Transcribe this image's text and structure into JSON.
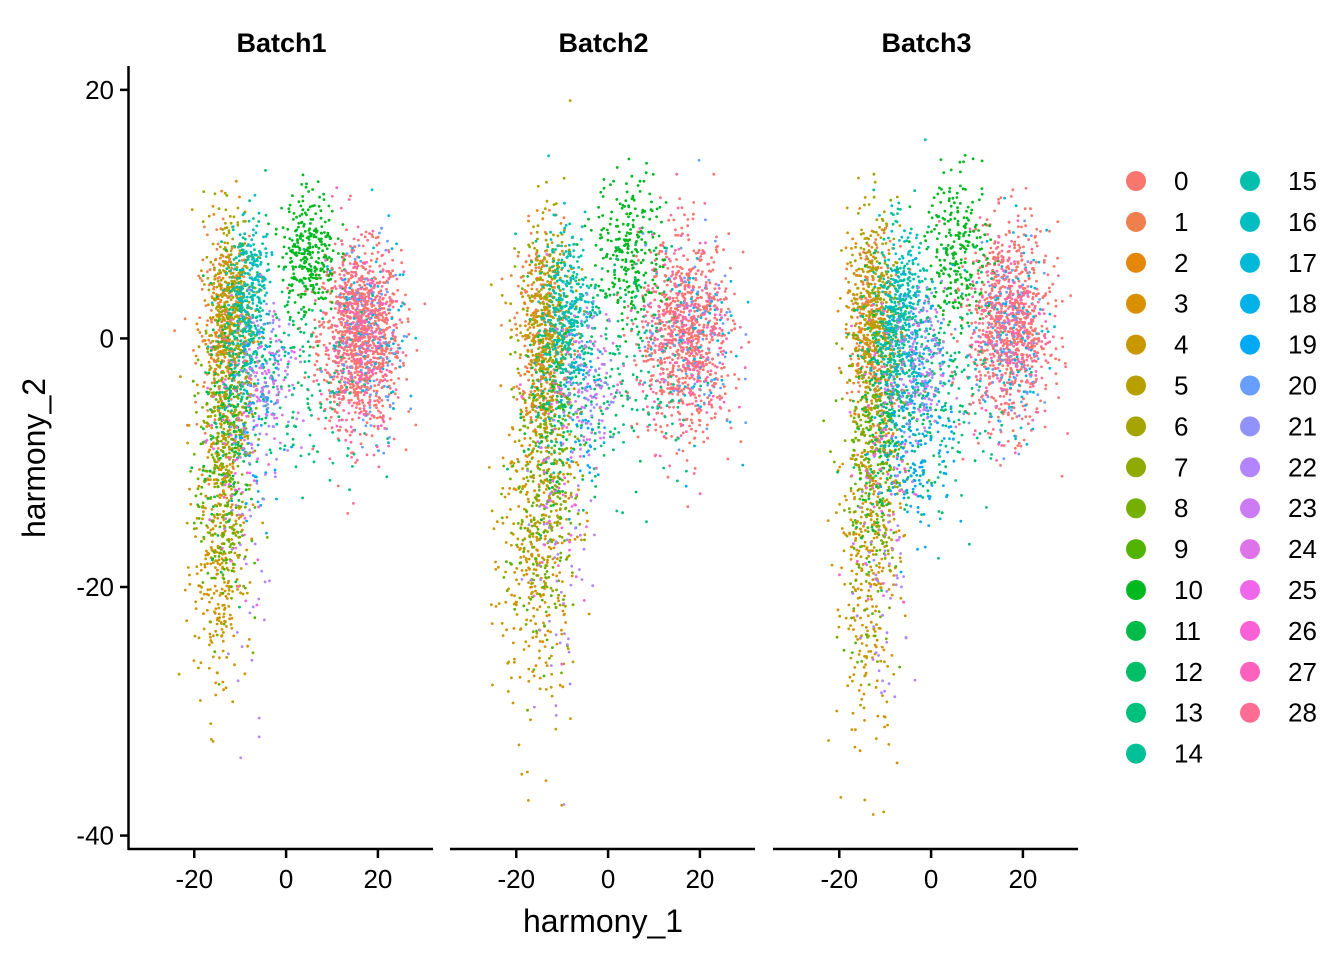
{
  "chart_data": {
    "type": "scatter",
    "xlabel": "harmony_1",
    "ylabel": "harmony_2",
    "facets": [
      "Batch1",
      "Batch2",
      "Batch3"
    ],
    "xlim": [
      -34,
      32
    ],
    "ylim": [
      -41,
      22
    ],
    "x_ticks": [
      -20,
      0,
      20
    ],
    "y_ticks": [
      20,
      0,
      -20,
      -40
    ],
    "x_tick_labels": [
      "-20",
      "0",
      "20"
    ],
    "y_tick_labels": [
      "20",
      "0",
      "-20",
      "-40"
    ],
    "legend_position": "right",
    "legend_entries": [
      "0",
      "1",
      "2",
      "3",
      "4",
      "5",
      "6",
      "7",
      "8",
      "9",
      "10",
      "11",
      "12",
      "13",
      "14",
      "15",
      "16",
      "17",
      "18",
      "19",
      "20",
      "21",
      "22",
      "23",
      "24",
      "25",
      "26",
      "27",
      "28"
    ],
    "colors": [
      "#F8766D",
      "#F07F4E",
      "#E5870A",
      "#D89000",
      "#C99800",
      "#B89F00",
      "#A5A400",
      "#8FAA00",
      "#75AF00",
      "#53B400",
      "#00B81F",
      "#00BB48",
      "#00BE65",
      "#00C07E",
      "#00C097",
      "#00BFAD",
      "#00BDC2",
      "#00B9D6",
      "#00B2E7",
      "#00A9F4",
      "#689EFF",
      "#9292FF",
      "#B285FF",
      "#CC7BF5",
      "#DE72E8",
      "#F066EA",
      "#FB61D7",
      "#FF62BC",
      "#FF6C94"
    ],
    "point_clouds": [
      [
        {
          "cluster": 0,
          "x": 16,
          "y": 0,
          "sx": 4.5,
          "sy": 3.5,
          "n": 900
        },
        {
          "cluster": 1,
          "x": -13,
          "y": 0,
          "sx": 3,
          "sy": 4,
          "n": 250
        },
        {
          "cluster": 2,
          "x": -13,
          "y": 1,
          "sx": 2.5,
          "sy": 4,
          "n": 150
        },
        {
          "cluster": 3,
          "x": -14,
          "y": -12,
          "sx": 3,
          "sy": 7,
          "n": 200
        },
        {
          "cluster": 4,
          "x": -15,
          "y": -18,
          "sx": 2.5,
          "sy": 6,
          "n": 200
        },
        {
          "cluster": 5,
          "x": -12,
          "y": 3,
          "sx": 2.5,
          "sy": 3.5,
          "n": 180
        },
        {
          "cluster": 6,
          "x": -12,
          "y": 4,
          "sx": 2.5,
          "sy": 3.5,
          "n": 120
        },
        {
          "cluster": 7,
          "x": -13,
          "y": -6,
          "sx": 2.5,
          "sy": 5,
          "n": 150
        },
        {
          "cluster": 8,
          "x": -14,
          "y": -10,
          "sx": 3,
          "sy": 6,
          "n": 150
        },
        {
          "cluster": 9,
          "x": -14,
          "y": -14,
          "sx": 3,
          "sy": 5,
          "n": 80
        },
        {
          "cluster": 10,
          "x": 5,
          "y": 7,
          "sx": 3,
          "sy": 2.5,
          "n": 300
        },
        {
          "cluster": 11,
          "x": -12,
          "y": -6,
          "sx": 3,
          "sy": 5,
          "n": 150
        },
        {
          "cluster": 12,
          "x": -2,
          "y": -3,
          "sx": 6,
          "sy": 5,
          "n": 100
        },
        {
          "cluster": 13,
          "x": 8,
          "y": -3,
          "sx": 8,
          "sy": 4,
          "n": 100
        },
        {
          "cluster": 14,
          "x": -10,
          "y": 0,
          "sx": 2.5,
          "sy": 4,
          "n": 150
        },
        {
          "cluster": 15,
          "x": -8,
          "y": 3,
          "sx": 2,
          "sy": 3,
          "n": 150
        },
        {
          "cluster": 16,
          "x": -7,
          "y": 5,
          "sx": 2,
          "sy": 2.5,
          "n": 80
        },
        {
          "cluster": 17,
          "x": 18,
          "y": 1,
          "sx": 4,
          "sy": 4,
          "n": 50
        },
        {
          "cluster": 18,
          "x": 18,
          "y": 0,
          "sx": 4,
          "sy": 4,
          "n": 40
        },
        {
          "cluster": 19,
          "x": -6,
          "y": -6,
          "sx": 3,
          "sy": 4,
          "n": 80
        },
        {
          "cluster": 20,
          "x": 18,
          "y": 0,
          "sx": 4,
          "sy": 4,
          "n": 100
        },
        {
          "cluster": 21,
          "x": -4,
          "y": -3,
          "sx": 3,
          "sy": 3,
          "n": 60
        },
        {
          "cluster": 22,
          "x": -8,
          "y": -12,
          "sx": 3,
          "sy": 8,
          "n": 60
        },
        {
          "cluster": 23,
          "x": -3,
          "y": -4,
          "sx": 3,
          "sy": 3,
          "n": 40
        },
        {
          "cluster": 24,
          "x": -3,
          "y": -2,
          "sx": 3,
          "sy": 3,
          "n": 40
        },
        {
          "cluster": 25,
          "x": -12,
          "y": -8,
          "sx": 3,
          "sy": 6,
          "n": 30
        },
        {
          "cluster": 26,
          "x": -10,
          "y": -10,
          "sx": 3,
          "sy": 6,
          "n": 30
        },
        {
          "cluster": 27,
          "x": 16,
          "y": 0,
          "sx": 4,
          "sy": 4,
          "n": 150
        },
        {
          "cluster": 28,
          "x": 16,
          "y": 0,
          "sx": 4,
          "sy": 4,
          "n": 200
        }
      ],
      [
        {
          "cluster": 0,
          "x": 17,
          "y": 0,
          "sx": 5,
          "sy": 4,
          "n": 700
        },
        {
          "cluster": 1,
          "x": -14,
          "y": 0,
          "sx": 3,
          "sy": 4,
          "n": 250
        },
        {
          "cluster": 2,
          "x": -14,
          "y": 0,
          "sx": 3,
          "sy": 4,
          "n": 150
        },
        {
          "cluster": 3,
          "x": -15,
          "y": -14,
          "sx": 4,
          "sy": 7,
          "n": 200
        },
        {
          "cluster": 4,
          "x": -16,
          "y": -18,
          "sx": 4,
          "sy": 7,
          "n": 180
        },
        {
          "cluster": 5,
          "x": -14,
          "y": 2,
          "sx": 3,
          "sy": 4,
          "n": 150
        },
        {
          "cluster": 6,
          "x": -13,
          "y": 3,
          "sx": 3,
          "sy": 4,
          "n": 100
        },
        {
          "cluster": 7,
          "x": -14,
          "y": -8,
          "sx": 3,
          "sy": 6,
          "n": 150
        },
        {
          "cluster": 8,
          "x": -14,
          "y": -12,
          "sx": 4,
          "sy": 7,
          "n": 150
        },
        {
          "cluster": 9,
          "x": -14,
          "y": -14,
          "sx": 3,
          "sy": 6,
          "n": 60
        },
        {
          "cluster": 10,
          "x": 5,
          "y": 7,
          "sx": 4,
          "sy": 3,
          "n": 250
        },
        {
          "cluster": 11,
          "x": -12,
          "y": -6,
          "sx": 3,
          "sy": 5,
          "n": 120
        },
        {
          "cluster": 12,
          "x": -2,
          "y": -3,
          "sx": 6,
          "sy": 5,
          "n": 120
        },
        {
          "cluster": 13,
          "x": 6,
          "y": -2,
          "sx": 8,
          "sy": 5,
          "n": 120
        },
        {
          "cluster": 14,
          "x": -10,
          "y": 0,
          "sx": 3,
          "sy": 4,
          "n": 150
        },
        {
          "cluster": 15,
          "x": -9,
          "y": 2,
          "sx": 2.5,
          "sy": 3,
          "n": 150
        },
        {
          "cluster": 16,
          "x": -8,
          "y": 4,
          "sx": 2.5,
          "sy": 3,
          "n": 80
        },
        {
          "cluster": 17,
          "x": 18,
          "y": 0,
          "sx": 5,
          "sy": 4,
          "n": 40
        },
        {
          "cluster": 18,
          "x": 18,
          "y": 0,
          "sx": 5,
          "sy": 4,
          "n": 40
        },
        {
          "cluster": 19,
          "x": -6,
          "y": -6,
          "sx": 3,
          "sy": 4,
          "n": 60
        },
        {
          "cluster": 20,
          "x": 18,
          "y": 0,
          "sx": 5,
          "sy": 4,
          "n": 80
        },
        {
          "cluster": 21,
          "x": -4,
          "y": -3,
          "sx": 3,
          "sy": 3,
          "n": 50
        },
        {
          "cluster": 22,
          "x": -10,
          "y": -16,
          "sx": 4,
          "sy": 7,
          "n": 60
        },
        {
          "cluster": 23,
          "x": -3,
          "y": -4,
          "sx": 3,
          "sy": 3,
          "n": 40
        },
        {
          "cluster": 24,
          "x": -3,
          "y": -2,
          "sx": 3,
          "sy": 3,
          "n": 30
        },
        {
          "cluster": 25,
          "x": -12,
          "y": -8,
          "sx": 3,
          "sy": 6,
          "n": 30
        },
        {
          "cluster": 26,
          "x": -10,
          "y": -10,
          "sx": 3,
          "sy": 6,
          "n": 30
        },
        {
          "cluster": 27,
          "x": 17,
          "y": 0,
          "sx": 5,
          "sy": 4,
          "n": 120
        },
        {
          "cluster": 28,
          "x": 17,
          "y": 0,
          "sx": 5,
          "sy": 4,
          "n": 160
        }
      ],
      [
        {
          "cluster": 0,
          "x": 17,
          "y": 1,
          "sx": 4.5,
          "sy": 4,
          "n": 700
        },
        {
          "cluster": 1,
          "x": -12,
          "y": 0,
          "sx": 3,
          "sy": 4,
          "n": 250
        },
        {
          "cluster": 2,
          "x": -13,
          "y": 1,
          "sx": 3,
          "sy": 4,
          "n": 150
        },
        {
          "cluster": 3,
          "x": -13,
          "y": -14,
          "sx": 3.5,
          "sy": 7,
          "n": 200
        },
        {
          "cluster": 4,
          "x": -14,
          "y": -20,
          "sx": 3.5,
          "sy": 7,
          "n": 180
        },
        {
          "cluster": 5,
          "x": -13,
          "y": 3,
          "sx": 2.5,
          "sy": 3.5,
          "n": 150
        },
        {
          "cluster": 6,
          "x": -12,
          "y": 4,
          "sx": 2.5,
          "sy": 3.5,
          "n": 100
        },
        {
          "cluster": 7,
          "x": -12,
          "y": -6,
          "sx": 3,
          "sy": 5,
          "n": 150
        },
        {
          "cluster": 8,
          "x": -13,
          "y": -12,
          "sx": 3.5,
          "sy": 7,
          "n": 150
        },
        {
          "cluster": 9,
          "x": -14,
          "y": -14,
          "sx": 3,
          "sy": 6,
          "n": 60
        },
        {
          "cluster": 10,
          "x": 6,
          "y": 7,
          "sx": 3.5,
          "sy": 3,
          "n": 250
        },
        {
          "cluster": 11,
          "x": -11,
          "y": -6,
          "sx": 3,
          "sy": 5,
          "n": 150
        },
        {
          "cluster": 12,
          "x": -4,
          "y": -4,
          "sx": 5,
          "sy": 5,
          "n": 150
        },
        {
          "cluster": 13,
          "x": 4,
          "y": -4,
          "sx": 7,
          "sy": 5,
          "n": 150
        },
        {
          "cluster": 14,
          "x": -8,
          "y": 1,
          "sx": 3,
          "sy": 4,
          "n": 180
        },
        {
          "cluster": 15,
          "x": -7,
          "y": 1,
          "sx": 3,
          "sy": 3.5,
          "n": 180
        },
        {
          "cluster": 16,
          "x": -6,
          "y": 3,
          "sx": 2.5,
          "sy": 3,
          "n": 100
        },
        {
          "cluster": 17,
          "x": 17,
          "y": 1,
          "sx": 4,
          "sy": 4,
          "n": 60
        },
        {
          "cluster": 18,
          "x": 17,
          "y": 0,
          "sx": 4,
          "sy": 4,
          "n": 50
        },
        {
          "cluster": 19,
          "x": -3,
          "y": -6,
          "sx": 4,
          "sy": 5,
          "n": 250
        },
        {
          "cluster": 20,
          "x": 17,
          "y": 0,
          "sx": 4,
          "sy": 4,
          "n": 100
        },
        {
          "cluster": 21,
          "x": -2,
          "y": -2,
          "sx": 3,
          "sy": 3,
          "n": 80
        },
        {
          "cluster": 22,
          "x": -10,
          "y": -20,
          "sx": 3,
          "sy": 7,
          "n": 60
        },
        {
          "cluster": 23,
          "x": -3,
          "y": -4,
          "sx": 3,
          "sy": 3,
          "n": 50
        },
        {
          "cluster": 24,
          "x": -3,
          "y": -2,
          "sx": 3,
          "sy": 3,
          "n": 40
        },
        {
          "cluster": 25,
          "x": -12,
          "y": -8,
          "sx": 3,
          "sy": 6,
          "n": 30
        },
        {
          "cluster": 26,
          "x": -10,
          "y": -10,
          "sx": 3,
          "sy": 6,
          "n": 30
        },
        {
          "cluster": 27,
          "x": 17,
          "y": 1,
          "sx": 4.5,
          "sy": 4,
          "n": 120
        },
        {
          "cluster": 28,
          "x": 17,
          "y": 1,
          "sx": 4.5,
          "sy": 4,
          "n": 160
        }
      ]
    ]
  }
}
